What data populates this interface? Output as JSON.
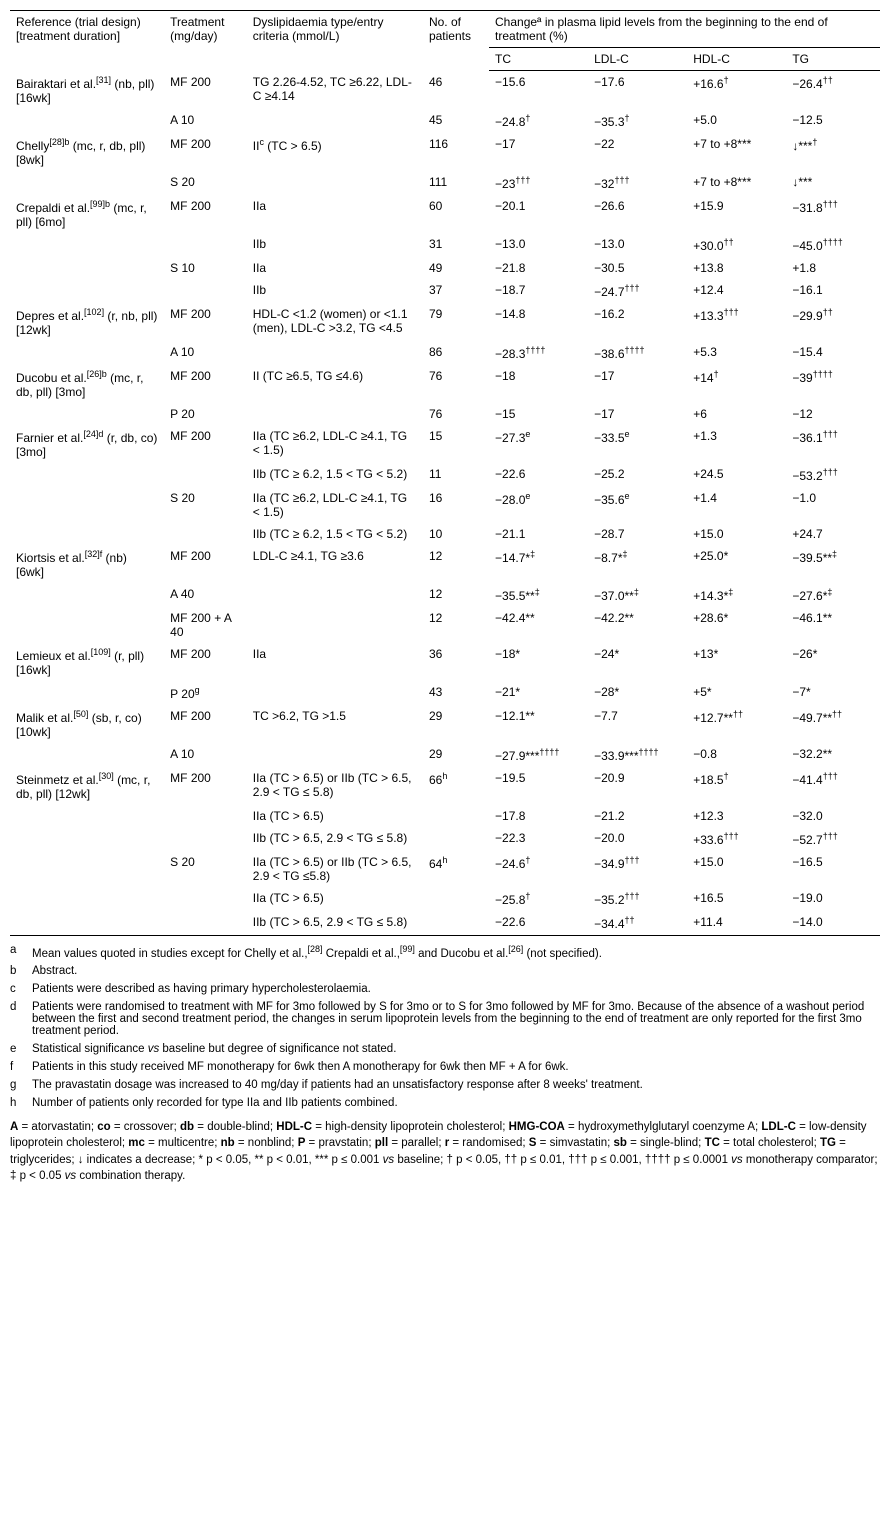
{
  "headers": {
    "reference": "Reference (trial design) [treatment duration]",
    "treatment": "Treatment (mg/day)",
    "dyslipid": "Dyslipidaemia type/entry criteria (mmol/L)",
    "patients": "No. of patients",
    "change_header": "Changeª in plasma lipid levels from the beginning to the end of treatment (%)",
    "tc": "TC",
    "ldl": "LDL-C",
    "hdl": "HDL-C",
    "tg": "TG"
  },
  "rows": [
    {
      "ref": "Bairaktari et al.<sup>[31]</sup> (nb, pll) [16wk]",
      "tx": "MF 200",
      "dys": "TG 2.26-4.52, TC ≥6.22, LDL-C ≥4.14",
      "n": "46",
      "tc": "−15.6",
      "ldl": "−17.6",
      "hdl": "+16.6<sup>†</sup>",
      "tg": "−26.4<sup>††</sup>"
    },
    {
      "ref": "",
      "tx": "A 10",
      "dys": "",
      "n": "45",
      "tc": "−24.8<sup>†</sup>",
      "ldl": "−35.3<sup>†</sup>",
      "hdl": "+5.0",
      "tg": "−12.5"
    },
    {
      "ref": "Chelly<sup>[28]b</sup> (mc, r, db, pll) [8wk]",
      "tx": "MF 200",
      "dys": "II<sup>c</sup> (TC > 6.5)",
      "n": "116",
      "tc": "−17",
      "ldl": "−22",
      "hdl": "+7 to +8***",
      "tg": "↓***<sup>†</sup>"
    },
    {
      "ref": "",
      "tx": "S 20",
      "dys": "",
      "n": "111",
      "tc": "−23<sup>†††</sup>",
      "ldl": "−32<sup>†††</sup>",
      "hdl": "+7 to +8***",
      "tg": "↓***"
    },
    {
      "ref": "Crepaldi et al.<sup>[99]b</sup> (mc, r, pll) [6mo]",
      "tx": "MF 200",
      "dys": "IIa",
      "n": "60",
      "tc": "−20.1",
      "ldl": "−26.6",
      "hdl": "+15.9",
      "tg": "−31.8<sup>†††</sup>"
    },
    {
      "ref": "",
      "tx": "",
      "dys": "IIb",
      "n": "31",
      "tc": "−13.0",
      "ldl": "−13.0",
      "hdl": "+30.0<sup>††</sup>",
      "tg": "−45.0<sup>††††</sup>"
    },
    {
      "ref": "",
      "tx": "S 10",
      "dys": "IIa",
      "n": "49",
      "tc": "−21.8",
      "ldl": "−30.5",
      "hdl": "+13.8",
      "tg": "+1.8"
    },
    {
      "ref": "",
      "tx": "",
      "dys": "IIb",
      "n": "37",
      "tc": "−18.7",
      "ldl": "−24.7<sup>†††</sup>",
      "hdl": "+12.4",
      "tg": "−16.1"
    },
    {
      "ref": "Depres et al.<sup>[102]</sup> (r, nb, pll) [12wk]",
      "tx": "MF 200",
      "dys": "HDL-C <1.2 (women) or <1.1 (men), LDL-C >3.2, TG <4.5",
      "n": "79",
      "tc": "−14.8",
      "ldl": "−16.2",
      "hdl": "+13.3<sup>†††</sup>",
      "tg": "−29.9<sup>††</sup>"
    },
    {
      "ref": "",
      "tx": "A 10",
      "dys": "",
      "n": "86",
      "tc": "−28.3<sup>††††</sup>",
      "ldl": "−38.6<sup>††††</sup>",
      "hdl": "+5.3",
      "tg": "−15.4"
    },
    {
      "ref": "Ducobu et al.<sup>[26]b</sup> (mc, r, db, pll) [3mo]",
      "tx": "MF 200",
      "dys": "II (TC ≥6.5, TG ≤4.6)",
      "n": "76",
      "tc": "−18",
      "ldl": "−17",
      "hdl": "+14<sup>†</sup>",
      "tg": "−39<sup>††††</sup>"
    },
    {
      "ref": "",
      "tx": "P 20",
      "dys": "",
      "n": "76",
      "tc": "−15",
      "ldl": "−17",
      "hdl": "+6",
      "tg": "−12"
    },
    {
      "ref": "Farnier et al.<sup>[24]d</sup> (r, db, co) [3mo]",
      "tx": "MF 200",
      "dys": "IIa (TC ≥6.2, LDL-C ≥4.1, TG < 1.5)",
      "n": "15",
      "tc": "−27.3<sup>e</sup>",
      "ldl": "−33.5<sup>e</sup>",
      "hdl": "+1.3",
      "tg": "−36.1<sup>†††</sup>"
    },
    {
      "ref": "",
      "tx": "",
      "dys": "IIb (TC ≥ 6.2, 1.5 < TG < 5.2)",
      "n": "11",
      "tc": "−22.6",
      "ldl": "−25.2",
      "hdl": "+24.5",
      "tg": "−53.2<sup>†††</sup>"
    },
    {
      "ref": "",
      "tx": "S 20",
      "dys": "IIa (TC ≥6.2, LDL-C ≥4.1, TG < 1.5)",
      "n": "16",
      "tc": "−28.0<sup>e</sup>",
      "ldl": "−35.6<sup>e</sup>",
      "hdl": "+1.4",
      "tg": "−1.0"
    },
    {
      "ref": "",
      "tx": "",
      "dys": "IIb (TC ≥ 6.2, 1.5 < TG < 5.2)",
      "n": "10",
      "tc": "−21.1",
      "ldl": "−28.7",
      "hdl": "+15.0",
      "tg": "+24.7"
    },
    {
      "ref": "Kiortsis et al.<sup>[32]f</sup> (nb) [6wk]",
      "tx": "MF 200",
      "dys": "LDL-C ≥4.1, TG ≥3.6",
      "n": "12",
      "tc": "−14.7*<sup>‡</sup>",
      "ldl": "−8.7*<sup>‡</sup>",
      "hdl": "+25.0*",
      "tg": "−39.5**<sup>‡</sup>"
    },
    {
      "ref": "",
      "tx": "A 40",
      "dys": "",
      "n": "12",
      "tc": "−35.5**<sup>‡</sup>",
      "ldl": "−37.0**<sup>‡</sup>",
      "hdl": "+14.3*<sup>‡</sup>",
      "tg": "−27.6*<sup>‡</sup>"
    },
    {
      "ref": "",
      "tx": "MF 200 + A 40",
      "dys": "",
      "n": "12",
      "tc": "−42.4**",
      "ldl": "−42.2**",
      "hdl": "+28.6*",
      "tg": "−46.1**"
    },
    {
      "ref": "Lemieux et al.<sup>[109]</sup> (r, pll) [16wk]",
      "tx": "MF 200",
      "dys": "IIa",
      "n": "36",
      "tc": "−18*",
      "ldl": "−24*",
      "hdl": "+13*",
      "tg": "−26*"
    },
    {
      "ref": "",
      "tx": "P 20<sup>g</sup>",
      "dys": "",
      "n": "43",
      "tc": "−21*",
      "ldl": "−28*",
      "hdl": "+5*",
      "tg": "−7*"
    },
    {
      "ref": "Malik et al.<sup>[50]</sup> (sb, r, co) [10wk]",
      "tx": "MF 200",
      "dys": "TC >6.2, TG >1.5",
      "n": "29",
      "tc": "−12.1**",
      "ldl": "−7.7",
      "hdl": "+12.7**<sup>††</sup>",
      "tg": "−49.7**<sup>††</sup>"
    },
    {
      "ref": "",
      "tx": "A 10",
      "dys": "",
      "n": "29",
      "tc": "−27.9***<sup>††††</sup>",
      "ldl": "−33.9***<sup>††††</sup>",
      "hdl": "−0.8",
      "tg": "−32.2**"
    },
    {
      "ref": "Steinmetz et al.<sup>[30]</sup> (mc, r, db, pll) [12wk]",
      "tx": "MF 200",
      "dys": "IIa (TC > 6.5) or IIb (TC > 6.5, 2.9 < TG ≤ 5.8)",
      "n": "66<sup>h</sup>",
      "tc": "−19.5",
      "ldl": "−20.9",
      "hdl": "+18.5<sup>†</sup>",
      "tg": "−41.4<sup>†††</sup>"
    },
    {
      "ref": "",
      "tx": "",
      "dys": "IIa (TC > 6.5)",
      "n": "",
      "tc": "−17.8",
      "ldl": "−21.2",
      "hdl": "+12.3",
      "tg": "−32.0"
    },
    {
      "ref": "",
      "tx": "",
      "dys": "IIb (TC > 6.5, 2.9 < TG ≤ 5.8)",
      "n": "",
      "tc": "−22.3",
      "ldl": "−20.0",
      "hdl": "+33.6<sup>†††</sup>",
      "tg": "−52.7<sup>†††</sup>"
    },
    {
      "ref": "",
      "tx": "S 20",
      "dys": "IIa (TC > 6.5) or IIb (TC > 6.5, 2.9 < TG ≤5.8)",
      "n": "64<sup>h</sup>",
      "tc": "−24.6<sup>†</sup>",
      "ldl": "−34.9<sup>†††</sup>",
      "hdl": "+15.0",
      "tg": "−16.5"
    },
    {
      "ref": "",
      "tx": "",
      "dys": "IIa (TC > 6.5)",
      "n": "",
      "tc": "−25.8<sup>†</sup>",
      "ldl": "−35.2<sup>†††</sup>",
      "hdl": "+16.5",
      "tg": "−19.0"
    },
    {
      "ref": "",
      "tx": "",
      "dys": "IIb (TC > 6.5, 2.9 < TG ≤ 5.8)",
      "n": "",
      "tc": "−22.6",
      "ldl": "−34.4<sup>††</sup>",
      "hdl": "+11.4",
      "tg": "−14.0"
    }
  ],
  "footnotes": [
    {
      "k": "a",
      "t": "Mean values quoted in studies except for Chelly et al.,<sup>[28]</sup> Crepaldi et al.,<sup>[99]</sup> and Ducobu et al.<sup>[26]</sup> (not specified)."
    },
    {
      "k": "b",
      "t": "Abstract."
    },
    {
      "k": "c",
      "t": "Patients were described as having primary hypercholesterolaemia."
    },
    {
      "k": "d",
      "t": "Patients were randomised to treatment with MF for 3mo followed by S for 3mo or to S for 3mo followed by MF for 3mo. Because of the absence of a washout period between the first and second treatment period, the changes in serum lipoprotein levels from the beginning to the end of treatment are only reported for the first 3mo treatment period."
    },
    {
      "k": "e",
      "t": "Statistical significance <i>vs</i> baseline but degree of significance not stated."
    },
    {
      "k": "f",
      "t": "Patients in this study received MF monotherapy for 6wk then A monotherapy for 6wk then MF + A for 6wk."
    },
    {
      "k": "g",
      "t": "The pravastatin dosage was increased to 40 mg/day if patients had an unsatisfactory response after 8 weeks' treatment."
    },
    {
      "k": "h",
      "t": "Number of patients only recorded for type IIa and IIb patients combined."
    }
  ],
  "abbrev": "<b>A</b> = atorvastatin;  <b>co</b> = crossover; <b>db</b> = double-blind;  <b>HDL-C</b> = high-density lipoprotein cholesterol; <b>HMG-COA</b> = hydroxymethylglutaryl coenzyme A;  <b>LDL-C</b> = low-density lipoprotein cholesterol; <b>mc</b> = multicentre; <b>nb</b> = nonblind; <b>P</b> = pravstatin; <b>pll</b> = parallel; <b>r</b> = randomised; <b>S</b> = simvastatin; <b>sb</b> = single-blind; <b>TC</b> = total cholesterol; <b>TG</b> = triglycerides; ↓ indicates a decrease; * p < 0.05, ** p < 0.01, *** p ≤ 0.001 <i>vs</i> baseline; † p < 0.05, †† p ≤ 0.01, ††† p ≤ 0.001, †††† p ≤ 0.0001 <i>vs</i> monotherapy comparator; ‡ p < 0.05 <i>vs</i> combination therapy."
}
